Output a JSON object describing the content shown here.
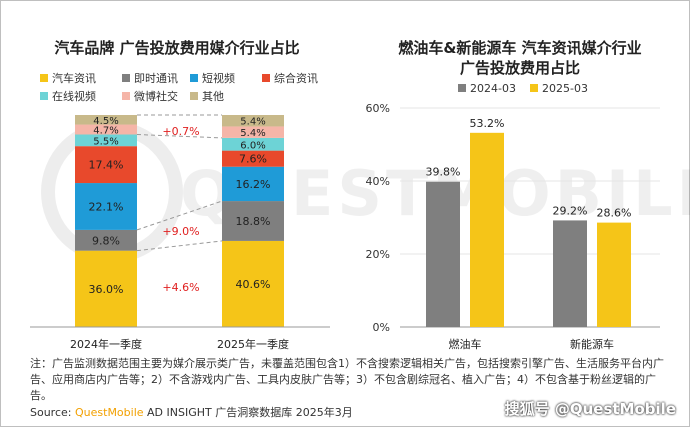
{
  "left_title": "汽车品牌 广告投放费用媒介行业占比",
  "right_title_line1": "燃油车&新能源车 汽车资讯媒介行业",
  "right_title_line2": "广告投放费用占比",
  "watermark": "QUESTMOBILE",
  "note_text": "注：广告监测数据范围主要为媒介展示类广告，未覆盖范围包含1）不含搜索逻辑相关广告，包括搜索引擎广告、生活服务平台内广告、应用商店内广告等；2）不含游戏内广告、工具内皮肤广告等；3）不包含剧综冠名、植入广告；4）不包含基于粉丝逻辑的广告。",
  "source_label": "Source:",
  "source_brand": "QuestMobile",
  "source_rest": " AD INSIGHT 广告洞察数据库 2025年3月",
  "footer_mark": "@QuestMobile",
  "footer_logo": "搜狐号",
  "chart_data": [
    {
      "type": "bar",
      "stacked": true,
      "title": "汽车品牌 广告投放费用媒介行业占比",
      "categories": [
        "2024年一季度",
        "2025年一季度"
      ],
      "series": [
        {
          "name": "汽车资讯",
          "color": "#f5c518",
          "values": [
            36.0,
            40.6
          ],
          "labels": [
            "36.0%",
            "40.6%"
          ]
        },
        {
          "name": "即时通讯",
          "color": "#7f7f7f",
          "values": [
            9.8,
            18.8
          ],
          "labels": [
            "9.8%",
            "18.8%"
          ]
        },
        {
          "name": "短视频",
          "color": "#1f9bd7",
          "values": [
            22.1,
            16.2
          ],
          "labels": [
            "22.1%",
            "16.2%"
          ]
        },
        {
          "name": "综合资讯",
          "color": "#e8492c",
          "values": [
            17.4,
            7.6
          ],
          "labels": [
            "17.4%",
            "7.6%"
          ]
        },
        {
          "name": "在线视频",
          "color": "#6dd3d6",
          "values": [
            5.5,
            6.0
          ],
          "labels": [
            "5.5%",
            "6.0%"
          ]
        },
        {
          "name": "微博社交",
          "color": "#f5b5a8",
          "values": [
            4.7,
            5.4
          ],
          "labels": [
            "4.7%",
            "5.4%"
          ]
        },
        {
          "name": "其他",
          "color": "#c8b98a",
          "values": [
            4.5,
            5.4
          ],
          "labels": [
            "4.5%",
            "5.4%"
          ]
        }
      ],
      "annotations": [
        "+0.7%",
        "+9.0%",
        "+4.6%"
      ],
      "ylim": [
        0,
        100
      ]
    },
    {
      "type": "bar",
      "title": "燃油车&新能源车 汽车资讯媒介行业广告投放费用占比",
      "categories": [
        "燃油车",
        "新能源车"
      ],
      "series": [
        {
          "name": "2024-03",
          "color": "#7f7f7f",
          "values": [
            39.8,
            29.2
          ],
          "labels": [
            "39.8%",
            "29.2%"
          ]
        },
        {
          "name": "2025-03",
          "color": "#f5c518",
          "values": [
            53.2,
            28.6
          ],
          "labels": [
            "53.2%",
            "28.6%"
          ]
        }
      ],
      "ylim": [
        0,
        60
      ],
      "yticks": [
        0,
        20,
        40,
        60
      ],
      "ytick_labels": [
        "0%",
        "20%",
        "40%",
        "60%"
      ]
    }
  ]
}
